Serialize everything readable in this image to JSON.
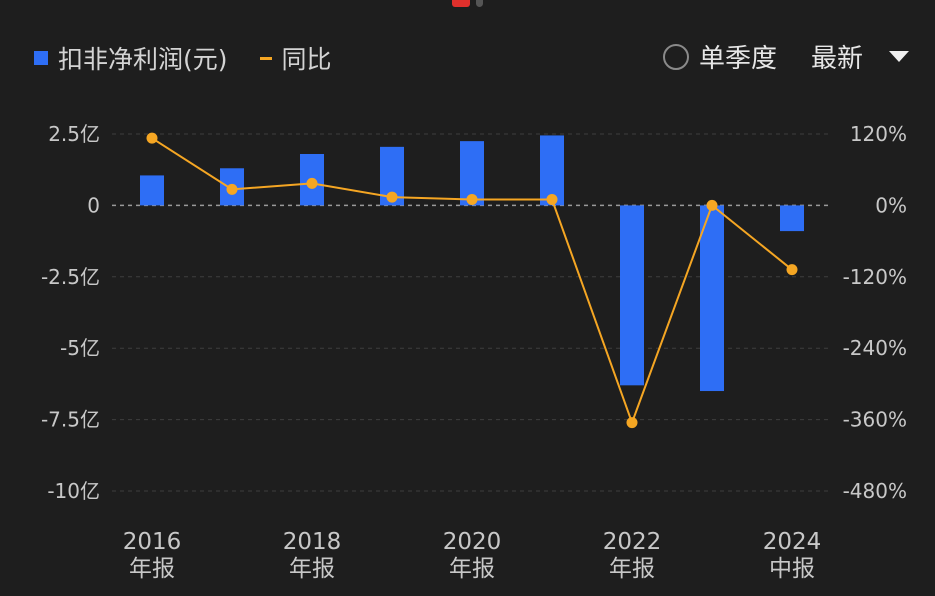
{
  "legend": {
    "bar_label": "扣非净利润(元)",
    "line_label": "同比"
  },
  "controls": {
    "single_quarter_label": "单季度",
    "latest_label": "最新"
  },
  "colors": {
    "bar": "#2e6ef5",
    "line": "#f5a623",
    "grid": "#3e3e3e",
    "zero_line": "#9a9a9a"
  },
  "chart_data": {
    "type": "bar",
    "y_ticks_left": [
      "2.5亿",
      "0",
      "-2.5亿",
      "-5亿",
      "-7.5亿",
      "-10亿"
    ],
    "y_ticks_right": [
      "120%",
      "0%",
      "-120%",
      "-240%",
      "-360%",
      "-480%"
    ],
    "ylim_left": [
      -10,
      2.5
    ],
    "ylim_right": [
      -480,
      120
    ],
    "x_labels": [
      {
        "year": "2016",
        "kind": "年报",
        "index": 0
      },
      {
        "year": "2018",
        "kind": "年报",
        "index": 2
      },
      {
        "year": "2020",
        "kind": "年报",
        "index": 4
      },
      {
        "year": "2022",
        "kind": "年报",
        "index": 6
      },
      {
        "year": "2024",
        "kind": "中报",
        "index": 8
      }
    ],
    "series": [
      {
        "name": "扣非净利润(元)",
        "unit": "亿",
        "values": [
          1.05,
          1.3,
          1.8,
          2.05,
          2.25,
          2.45,
          -6.3,
          -6.5,
          -0.9
        ]
      },
      {
        "name": "同比",
        "unit": "%",
        "values": [
          113,
          27,
          37,
          14,
          10,
          10,
          -365,
          0,
          -108
        ]
      }
    ]
  }
}
